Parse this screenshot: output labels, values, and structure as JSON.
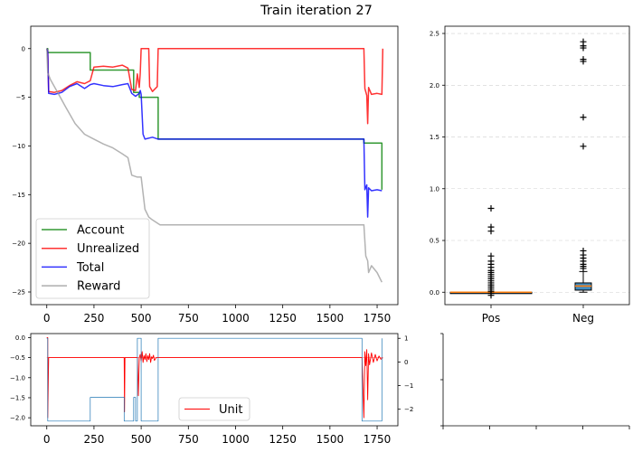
{
  "figure": {
    "title": "Train iteration 27"
  },
  "chart_data": [
    {
      "type": "line",
      "title": "",
      "xlabel": "",
      "ylabel": "",
      "xlim": [
        -85,
        1860
      ],
      "ylim": [
        -26.3,
        2.3
      ],
      "x_ticks": [
        "0",
        "250",
        "500",
        "750",
        "1000",
        "1250",
        "1500",
        "1750"
      ],
      "y_ticks": [
        "0",
        "−5",
        "−10",
        "−15",
        "−20",
        "−25"
      ],
      "legend_position": "lower-left",
      "grid": false,
      "series": [
        {
          "name": "Account",
          "color": "#008000",
          "x": [
            0,
            5,
            5,
            230,
            230,
            460,
            460,
            490,
            490,
            590,
            590,
            1680,
            1680,
            1775,
            1775
          ],
          "y": [
            0,
            0,
            -0.4,
            -0.4,
            -2.2,
            -2.2,
            -4.5,
            -4.5,
            -5.0,
            -5.0,
            -9.3,
            -9.3,
            -9.7,
            -9.7,
            -14.5
          ]
        },
        {
          "name": "Unrealized",
          "color": "#ff0000",
          "x": [
            0,
            5,
            10,
            40,
            80,
            120,
            160,
            200,
            230,
            250,
            300,
            350,
            400,
            430,
            450,
            470,
            480,
            490,
            495,
            500,
            540,
            545,
            560,
            585,
            590,
            1680,
            1685,
            1695,
            1700,
            1705,
            1720,
            1750,
            1775,
            1780
          ],
          "y": [
            0,
            -0.3,
            -4.4,
            -4.5,
            -4.3,
            -3.8,
            -3.4,
            -3.6,
            -3.3,
            -1.9,
            -1.8,
            -1.9,
            -1.7,
            -2.0,
            -4.2,
            -4.3,
            -2.6,
            -4.0,
            -2.5,
            0,
            0,
            -3.9,
            -4.4,
            -3.9,
            0,
            0,
            -4.1,
            -4.8,
            -7.7,
            -4.0,
            -4.7,
            -4.6,
            -4.7,
            0
          ]
        },
        {
          "name": "Total",
          "color": "#0000ff",
          "x": [
            0,
            5,
            10,
            40,
            80,
            120,
            160,
            200,
            230,
            250,
            300,
            350,
            400,
            430,
            450,
            470,
            490,
            495,
            500,
            510,
            520,
            560,
            590,
            1680,
            1685,
            1695,
            1700,
            1705,
            1720,
            1750,
            1775
          ],
          "y": [
            0,
            -0.3,
            -4.6,
            -4.7,
            -4.5,
            -3.9,
            -3.6,
            -4.1,
            -3.7,
            -3.6,
            -3.8,
            -3.9,
            -3.7,
            -3.6,
            -4.6,
            -4.9,
            -4.6,
            -4.3,
            -4.7,
            -8.8,
            -9.3,
            -9.1,
            -9.3,
            -9.3,
            -14.5,
            -14.0,
            -17.3,
            -14.3,
            -14.6,
            -14.5,
            -14.6
          ]
        },
        {
          "name": "Reward",
          "color": "#999999",
          "x": [
            0,
            5,
            20,
            60,
            100,
            150,
            200,
            250,
            300,
            350,
            400,
            430,
            450,
            480,
            500,
            520,
            540,
            560,
            600,
            1680,
            1690,
            1700,
            1705,
            1720,
            1750,
            1775
          ],
          "y": [
            0,
            -2.5,
            -3.2,
            -4.6,
            -6.0,
            -7.7,
            -8.8,
            -9.3,
            -9.8,
            -10.2,
            -10.8,
            -11.2,
            -13.0,
            -13.2,
            -13.2,
            -16.5,
            -17.3,
            -17.6,
            -18.1,
            -18.1,
            -21.3,
            -21.8,
            -23.0,
            -22.3,
            -23.0,
            -24.0
          ]
        }
      ]
    },
    {
      "type": "box",
      "title": "",
      "xlabel": "",
      "ylabel": "",
      "categories": [
        "Pos",
        "Neg"
      ],
      "ylim": [
        -0.12,
        2.57
      ],
      "y_ticks": [
        "0.0",
        "0.5",
        "1.0",
        "1.5",
        "2.0",
        "2.5"
      ],
      "grid": true,
      "boxes": [
        {
          "name": "Pos",
          "q1": 0.0,
          "median": 0.0,
          "q3": 0.0,
          "whisker_low": 0.0,
          "whisker_high": 0.0,
          "fill_color": "#1f77b4",
          "median_color": "#ff7f0e",
          "outliers": [
            0.81,
            0.63,
            0.59,
            0.35,
            0.3,
            0.27,
            0.24,
            0.21,
            0.19,
            0.17,
            0.15,
            0.13,
            0.11,
            0.09,
            0.07,
            0.05,
            0.03,
            0.01,
            -0.01,
            -0.03
          ]
        },
        {
          "name": "Neg",
          "q1": 0.02,
          "median": 0.06,
          "q3": 0.09,
          "whisker_low": 0.0,
          "whisker_high": 0.2,
          "fill_color": "#1f77b4",
          "median_color": "#ff7f0e",
          "outliers": [
            2.42,
            2.38,
            2.36,
            2.25,
            2.23,
            1.69,
            1.41,
            0.4,
            0.36,
            0.33,
            0.3,
            0.27,
            0.25,
            0.23
          ]
        }
      ]
    },
    {
      "type": "line",
      "title": "",
      "xlabel": "",
      "ylabel": "",
      "xlim": [
        -85,
        1860
      ],
      "ylim": [
        -2.2,
        0.1
      ],
      "y2lim": [
        -2.7,
        1.2
      ],
      "x_ticks": [
        "0",
        "250",
        "500",
        "750",
        "1000",
        "1250",
        "1500",
        "1750"
      ],
      "y_ticks": [
        "0.0",
        "−0.5",
        "−1.0",
        "−1.5",
        "−2.0"
      ],
      "y2_ticks": [
        "1",
        "0",
        "−1",
        "−2"
      ],
      "legend_position": "bottom-center",
      "series": [
        {
          "name": "Unit",
          "color": "#ff0000",
          "axis": "left",
          "x": [
            0,
            5,
            5,
            10,
            410,
            412,
            414,
            416,
            420,
            470,
            480,
            485,
            490,
            495,
            500,
            505,
            510,
            515,
            520,
            525,
            530,
            535,
            540,
            545,
            550,
            555,
            560,
            565,
            570,
            580,
            590,
            1660,
            1670,
            1680,
            1685,
            1690,
            1695,
            1700,
            1705,
            1710,
            1720,
            1730,
            1740,
            1750,
            1760,
            1770,
            1780
          ],
          "y": [
            0,
            0,
            -2.0,
            -0.5,
            -0.5,
            -1.85,
            -0.5,
            -0.5,
            -0.5,
            -0.5,
            -0.5,
            -1.45,
            -0.5,
            -0.42,
            -0.58,
            -0.35,
            -0.62,
            -0.45,
            -0.55,
            -0.4,
            -0.6,
            -0.45,
            -0.55,
            -0.4,
            -0.62,
            -0.48,
            -0.52,
            -0.44,
            -0.57,
            -0.5,
            -0.5,
            -0.5,
            -0.5,
            -2.0,
            -0.35,
            -0.7,
            -0.3,
            -1.55,
            -0.4,
            -0.68,
            -0.38,
            -0.62,
            -0.42,
            -0.58,
            -0.46,
            -0.54,
            -0.5
          ]
        },
        {
          "name": "",
          "color": "#1f77b4",
          "axis": "right",
          "x": [
            0,
            5,
            5,
            230,
            230,
            410,
            410,
            460,
            460,
            470,
            470,
            480,
            480,
            500,
            500,
            540,
            540,
            590,
            590,
            1670,
            1670,
            1775,
            1775
          ],
          "y": [
            1,
            1,
            -2.5,
            -2.5,
            -1.5,
            -1.5,
            -2.5,
            -2.5,
            -1.5,
            -1.5,
            -2.5,
            -2.5,
            1,
            1,
            -2.5,
            -2.5,
            -2.5,
            -2.5,
            1,
            1,
            -2.5,
            -2.5,
            1
          ]
        }
      ]
    },
    {
      "type": "line",
      "title": "",
      "series": []
    }
  ]
}
